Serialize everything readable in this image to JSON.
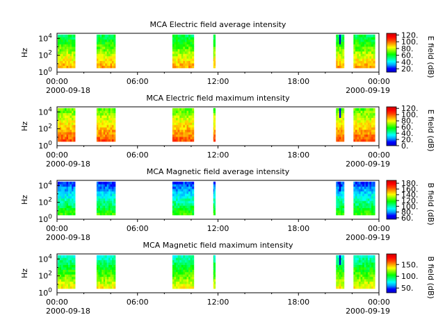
{
  "chart_data": [
    {
      "type": "heatmap",
      "title": "MCA  Electric field average intensity",
      "ylabel": "Hz",
      "colorbar_label": "E field (dB)",
      "colorbar_range": [
        10,
        125
      ],
      "colorbar_ticks": [
        "20.",
        "40.",
        "60.",
        "80.",
        "100.",
        "120."
      ],
      "y_ticks": [
        "10",
        "10",
        "10"
      ],
      "y_tick_exponents": [
        "0",
        "2",
        "4"
      ],
      "x_ticks": [
        "00:00",
        "06:00",
        "12:00",
        "18:00",
        "00:00"
      ],
      "x_dates": [
        "2000-09-18",
        "2000-09-19"
      ]
    },
    {
      "type": "heatmap",
      "title": "MCA  Electric field maximum intensity",
      "ylabel": "Hz",
      "colorbar_label": "E field (dB)",
      "colorbar_range": [
        0,
        125
      ],
      "colorbar_ticks": [
        "0.",
        "20.",
        "40.",
        "60.",
        "80.",
        "100.",
        "120."
      ],
      "y_ticks": [
        "10",
        "10",
        "10"
      ],
      "y_tick_exponents": [
        "0",
        "2",
        "4"
      ],
      "x_ticks": [
        "00:00",
        "06:00",
        "12:00",
        "18:00",
        "00:00"
      ],
      "x_dates": [
        "2000-09-18",
        "2000-09-19"
      ]
    },
    {
      "type": "heatmap",
      "title": "MCA  Magnetic field average intensity",
      "ylabel": "Hz",
      "colorbar_label": "B field (dB)",
      "colorbar_range": [
        55,
        190
      ],
      "colorbar_ticks": [
        "60.",
        "80.",
        "100.",
        "120.",
        "140.",
        "160.",
        "180."
      ],
      "y_ticks": [
        "10",
        "10",
        "10"
      ],
      "y_tick_exponents": [
        "0",
        "2",
        "4"
      ],
      "x_ticks": [
        "00:00",
        "06:00",
        "12:00",
        "18:00",
        "00:00"
      ],
      "x_dates": [
        "2000-09-18",
        "2000-09-19"
      ]
    },
    {
      "type": "heatmap",
      "title": "MCA  Magnetic field maximum intensity",
      "ylabel": "Hz",
      "colorbar_label": "B field (dB)",
      "colorbar_range": [
        30,
        195
      ],
      "colorbar_ticks": [
        "50.",
        "100.",
        "150."
      ],
      "y_ticks": [
        "10",
        "10",
        "10"
      ],
      "y_tick_exponents": [
        "0",
        "2",
        "4"
      ],
      "x_ticks": [
        "00:00",
        "06:00",
        "12:00",
        "18:00",
        "00:00"
      ],
      "x_dates": [
        "2000-09-18",
        "2000-09-19"
      ]
    }
  ],
  "x_axis_hours": [
    0,
    6,
    12,
    18,
    24
  ],
  "y_axis_log10_hz": [
    0,
    2,
    4
  ],
  "data_segments_hours": [
    [
      0.05,
      1.35
    ],
    [
      2.95,
      4.35
    ],
    [
      8.6,
      10.2
    ],
    [
      11.65,
      11.8
    ],
    [
      20.8,
      21.4
    ],
    [
      22.1,
      23.7
    ]
  ],
  "colormap": [
    "#0000c8",
    "#0000ff",
    "#00a0ff",
    "#00ffff",
    "#00ff80",
    "#00ff00",
    "#80ff00",
    "#ffff00",
    "#ffa000",
    "#ff4000",
    "#ff0000",
    "#c80000"
  ]
}
